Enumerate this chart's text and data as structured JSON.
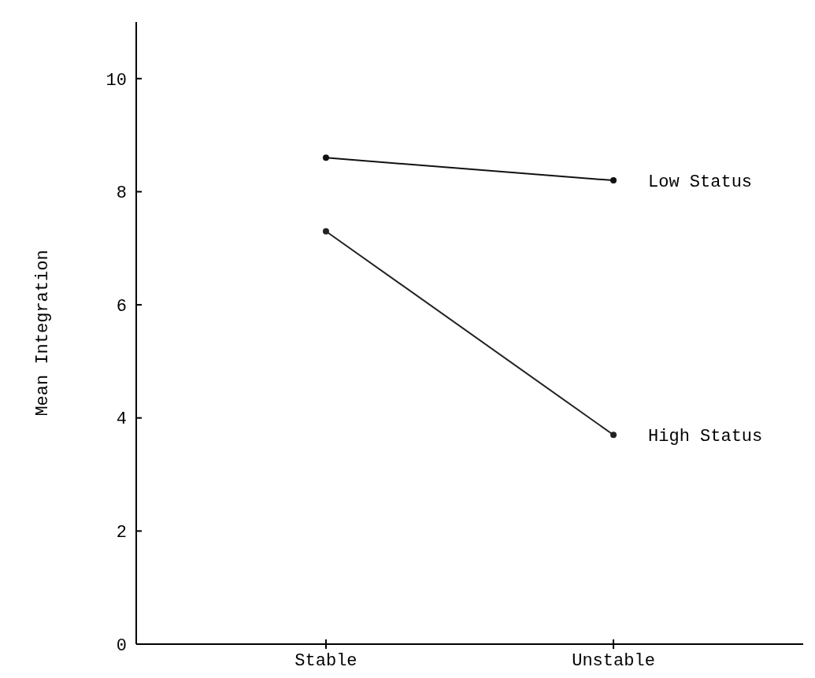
{
  "chart_data": {
    "type": "line",
    "ylabel": "Mean Integration",
    "categories": [
      "Stable",
      "Unstable"
    ],
    "series": [
      {
        "name": "Low Status",
        "color": "#111111",
        "values": [
          8.6,
          8.2
        ]
      },
      {
        "name": "High Status",
        "color": "#222222",
        "values": [
          7.3,
          3.7
        ]
      }
    ],
    "ylim": [
      0,
      11
    ],
    "yticks": [
      0,
      2,
      4,
      6,
      8,
      10
    ],
    "marker": "circle",
    "line_style": "solid",
    "grid": false
  }
}
